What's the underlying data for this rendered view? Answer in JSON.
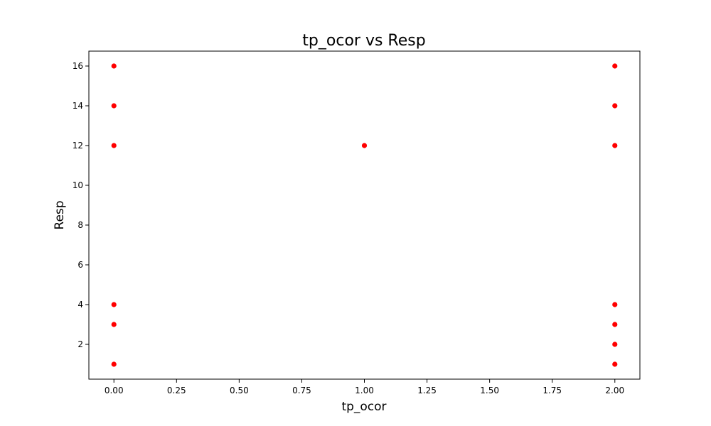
{
  "chart_data": {
    "type": "scatter",
    "title": "tp_ocor vs Resp",
    "xlabel": "tp_ocor",
    "ylabel": "Resp",
    "xlim": [
      -0.1,
      2.1
    ],
    "ylim": [
      0.25,
      16.75
    ],
    "x_ticks": [
      0.0,
      0.25,
      0.5,
      0.75,
      1.0,
      1.25,
      1.5,
      1.75,
      2.0
    ],
    "x_tick_labels": [
      "0.00",
      "0.25",
      "0.50",
      "0.75",
      "1.00",
      "1.25",
      "1.50",
      "1.75",
      "2.00"
    ],
    "y_ticks": [
      2,
      4,
      6,
      8,
      10,
      12,
      14,
      16
    ],
    "y_tick_labels": [
      "2",
      "4",
      "6",
      "8",
      "10",
      "12",
      "14",
      "16"
    ],
    "grid": false,
    "marker_color": "#ff0000",
    "points": [
      {
        "x": 0,
        "y": 16
      },
      {
        "x": 0,
        "y": 14
      },
      {
        "x": 0,
        "y": 12
      },
      {
        "x": 0,
        "y": 4
      },
      {
        "x": 0,
        "y": 3
      },
      {
        "x": 0,
        "y": 1
      },
      {
        "x": 1,
        "y": 12
      },
      {
        "x": 2,
        "y": 16
      },
      {
        "x": 2,
        "y": 14
      },
      {
        "x": 2,
        "y": 12
      },
      {
        "x": 2,
        "y": 4
      },
      {
        "x": 2,
        "y": 3
      },
      {
        "x": 2,
        "y": 2
      },
      {
        "x": 2,
        "y": 1
      }
    ]
  }
}
